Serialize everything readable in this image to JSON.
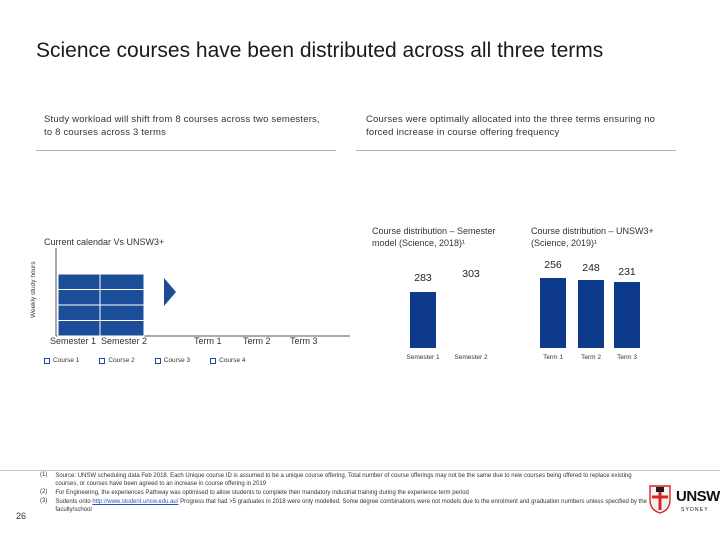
{
  "title": "Science courses have been distributed across all three terms",
  "left_panel": {
    "subtitle": "Study workload will shift from 8 courses across two semesters, to 8 courses across 3 terms"
  },
  "right_panel": {
    "subtitle": "Courses were optimally allocated into the three terms ensuring no forced increase in course offering frequency"
  },
  "page_number": "26",
  "logo": {
    "text": "UNSW",
    "subtext": "SYDNEY"
  },
  "footnotes": [
    {
      "num": "(1)",
      "text": "Source: UNSW scheduling data Feb 2018. Each Unique course ID is assumed to be a unique course offering. Total number of course offerings may not be the same due to new courses being offered to replace existing courses, or courses have been agreed to an increase in course offering in 2019"
    },
    {
      "num": "(2)",
      "text": "For Engineering, the experiences Pathway was optimised to allow students to complete their mandatory industrial training during the experience term period"
    },
    {
      "num": "(3)",
      "text_before": "Sudents onto ",
      "link": "http://www.student.unsw.edu.au/",
      "text_after": " Progress that had >5 graduates in 2018 were only modelled. Some degree combinations were not models due to the enrolment and graduation numbers unless specified by the faculty/school"
    }
  ],
  "chart_data": [
    {
      "type": "bar",
      "title": "Current calendar Vs UNSW3+",
      "ylabel": "Weekly study hours",
      "xlabel": "",
      "categories_current": [
        "Semester 1",
        "Semester 2"
      ],
      "categories_new": [
        "Term 1",
        "Term 2",
        "Term 3"
      ],
      "legend": [
        "Course 1",
        "Course 2",
        "Course 3",
        "Course 4"
      ],
      "series_current": [
        {
          "name": "Course 1",
          "values": [
            1,
            1
          ]
        },
        {
          "name": "Course 2",
          "values": [
            1,
            1
          ]
        },
        {
          "name": "Course 3",
          "values": [
            1,
            1
          ]
        },
        {
          "name": "Course 4",
          "values": [
            1,
            1
          ]
        }
      ],
      "colors": {
        "bar": "#1b4d99",
        "divider": "#ffffff",
        "arrow": "#1b4d99"
      }
    },
    {
      "type": "bar",
      "title": "Course distribution – Semester model (Science, 2018)¹",
      "categories": [
        "Semester 1",
        "Semester 2"
      ],
      "values": [
        283,
        303
      ],
      "colors": [
        "#0d3a8a",
        "#cc1a1a"
      ]
    },
    {
      "type": "bar",
      "title": "Course distribution – UNSW3+ (Science, 2019)¹",
      "categories": [
        "Term 1",
        "Term 2",
        "Term 3"
      ],
      "values": [
        256,
        248,
        231
      ],
      "colors": [
        "#0d3a8a",
        "#0d3a8a",
        "#0d3a8a"
      ]
    }
  ]
}
